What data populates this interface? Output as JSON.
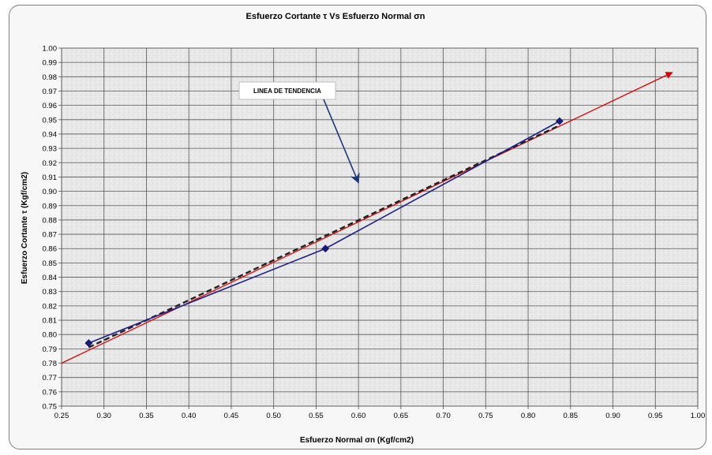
{
  "chart_data": {
    "type": "scatter",
    "title": "Esfuerzo Cortante τ Vs Esfuerzo Normal σn",
    "xlabel": "Esfuerzo Normal σn (Kgf/cm2)",
    "ylabel": "Esfuerzo Cortante τ (Kgf/cm2)",
    "xlim": [
      0.25,
      1.0
    ],
    "ylim": [
      0.75,
      1.0
    ],
    "x_ticks": [
      "0.25",
      "0.30",
      "0.35",
      "0.40",
      "0.45",
      "0.50",
      "0.55",
      "0.60",
      "0.65",
      "0.70",
      "0.75",
      "0.80",
      "0.85",
      "0.90",
      "0.95",
      "1.00"
    ],
    "y_ticks": [
      "0.75",
      "0.76",
      "0.77",
      "0.78",
      "0.79",
      "0.80",
      "0.81",
      "0.82",
      "0.83",
      "0.84",
      "0.85",
      "0.86",
      "0.87",
      "0.88",
      "0.89",
      "0.90",
      "0.91",
      "0.92",
      "0.93",
      "0.94",
      "0.95",
      "0.96",
      "0.97",
      "0.98",
      "0.99",
      "1.00"
    ],
    "grid": true,
    "series": [
      {
        "x": [
          0.282,
          0.561,
          0.837
        ],
        "y": [
          0.794,
          0.86,
          0.949
        ],
        "color": "#1f1f8f",
        "marker": "diamond"
      },
      {
        "x": [
          0.282,
          0.837
        ],
        "y": [
          0.791,
          0.946
        ],
        "color": "#222222",
        "style": "dashed"
      },
      {
        "x": [
          0.25,
          0.97
        ],
        "y": [
          0.78,
          0.983
        ],
        "color": "#e00000",
        "style": "arrow"
      }
    ],
    "annotations": [
      {
        "text": "LINEA DE TENDENCIA",
        "arrow_to": [
          0.6,
          0.906
        ],
        "arrow_color": "#1f3a7a"
      }
    ]
  }
}
